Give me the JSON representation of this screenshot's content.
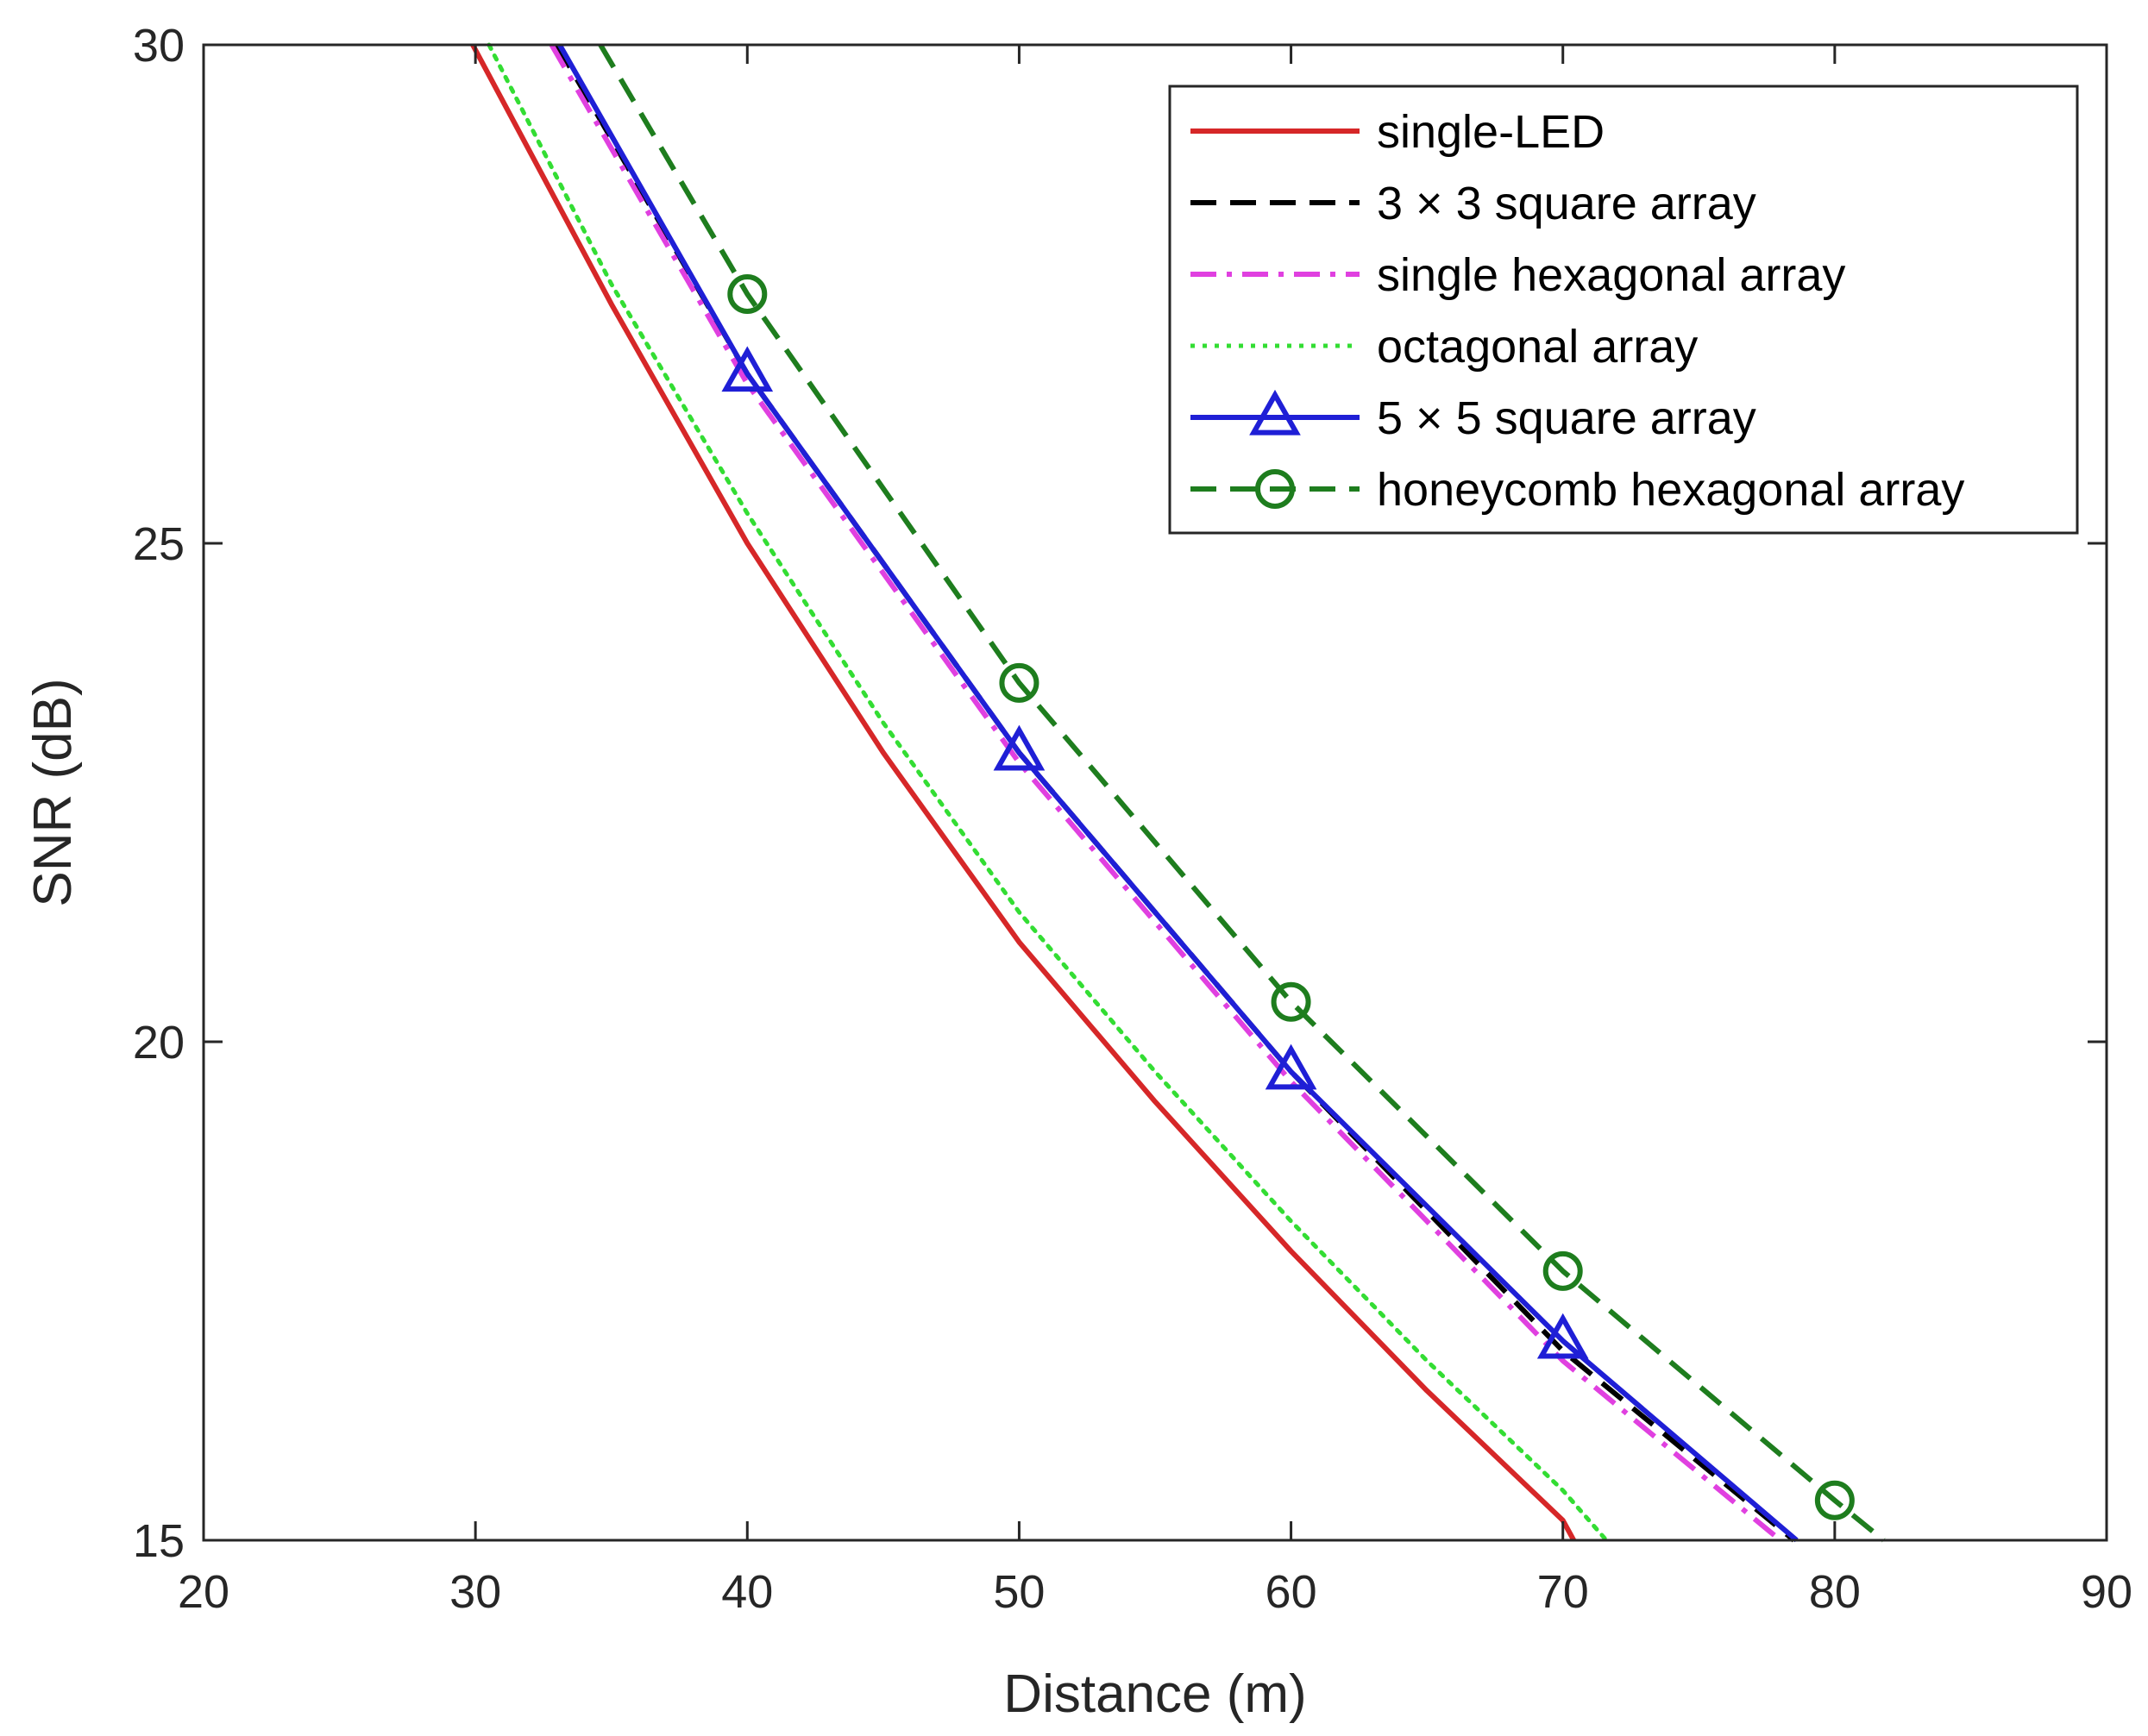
{
  "chart_data": {
    "type": "line",
    "title": "",
    "xlabel": "Distance (m)",
    "ylabel": "SNR (dB)",
    "xlim": [
      20,
      90
    ],
    "ylim": [
      15,
      30
    ],
    "xticks": [
      "20",
      "30",
      "40",
      "50",
      "60",
      "70",
      "80",
      "90"
    ],
    "yticks": [
      "15",
      "20",
      "25",
      "30"
    ],
    "grid": false,
    "legend_position": "top-right",
    "series": [
      {
        "name": "single-LED",
        "color": "#d62728",
        "line_style": "solid",
        "marker": "none",
        "x": [
          29.9,
          35,
          40,
          45,
          50,
          55,
          60,
          65,
          70,
          70.4
        ],
        "y": [
          30.0,
          27.4,
          25.0,
          22.9,
          21.0,
          19.4,
          17.9,
          16.5,
          15.2,
          15.0
        ]
      },
      {
        "name": "3 × 3 square array",
        "color": "#000000",
        "line_style": "dashed",
        "marker": "none",
        "x": [
          33.0,
          40,
          50,
          60,
          70,
          78.5
        ],
        "y": [
          30.0,
          26.7,
          22.9,
          19.7,
          16.9,
          15.0
        ]
      },
      {
        "name": "single hexagonal array",
        "color": "#e040e0",
        "line_style": "dashdot",
        "marker": "none",
        "x": [
          32.8,
          40,
          50,
          60,
          70,
          78.0
        ],
        "y": [
          30.0,
          26.6,
          22.8,
          19.6,
          16.8,
          15.0
        ]
      },
      {
        "name": "octagonal array",
        "color": "#33dd33",
        "line_style": "dotted",
        "marker": "none",
        "x": [
          30.5,
          35,
          40,
          45,
          50,
          55,
          60,
          65,
          70,
          71.6
        ],
        "y": [
          30.0,
          27.6,
          25.3,
          23.2,
          21.3,
          19.7,
          18.2,
          16.8,
          15.5,
          15.0
        ]
      },
      {
        "name": "5 × 5 square array",
        "color": "#1f1fd6",
        "line_style": "solid",
        "marker": "triangle",
        "x": [
          33.1,
          40,
          50,
          60,
          70,
          78.6
        ],
        "y": [
          30.0,
          26.7,
          22.9,
          19.7,
          17.0,
          15.0
        ]
      },
      {
        "name": "honeycomb hexagonal array",
        "color": "#1e7d1e",
        "line_style": "dashed",
        "marker": "circle",
        "x": [
          34.6,
          40,
          50,
          60,
          70,
          80,
          81.8
        ],
        "y": [
          30.0,
          27.5,
          23.6,
          20.4,
          17.7,
          15.4,
          15.0
        ]
      }
    ]
  }
}
